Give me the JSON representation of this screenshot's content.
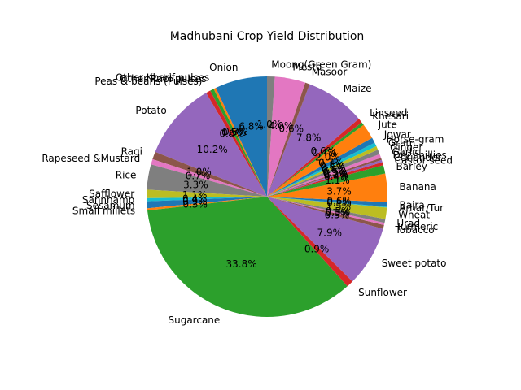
{
  "chart_data": {
    "type": "pie",
    "title": "Madhubani Crop Yield Distribution",
    "start_angle_deg": 90,
    "direction": "counterclockwise",
    "colors": [
      "#1f77b4",
      "#ff7f0e",
      "#2ca02c",
      "#d62728",
      "#9467bd",
      "#8c564b",
      "#e377c2",
      "#7f7f7f",
      "#bcbd22",
      "#17becf"
    ],
    "slices": [
      {
        "label": "Onion",
        "value": 6.8,
        "pct": "6.8%"
      },
      {
        "label": "Other Kharif pulses",
        "value": 0.3,
        "pct": "0.3%"
      },
      {
        "label": "Other Rabi pulses",
        "value": 0.5,
        "pct": "0.5%"
      },
      {
        "label": "Peas & beans (Pulses)",
        "value": 0.6,
        "pct": "0.6%"
      },
      {
        "label": "Potato",
        "value": 10.2,
        "pct": "10.2%"
      },
      {
        "label": "Ragi",
        "value": 1.0,
        "pct": "1.0%"
      },
      {
        "label": "Rapeseed &Mustard",
        "value": 0.7,
        "pct": "0.7%"
      },
      {
        "label": "Rice",
        "value": 3.3,
        "pct": "3.3%"
      },
      {
        "label": "Safflower",
        "value": 1.1,
        "pct": "1.1%"
      },
      {
        "label": "Sannhamp",
        "value": 0.4,
        "pct": "0.4%"
      },
      {
        "label": "Sesamum",
        "value": 0.9,
        "pct": "0.9%"
      },
      {
        "label": "Small millets",
        "value": 0.3,
        "pct": "0.3%"
      },
      {
        "label": "Sugarcane",
        "value": 33.8,
        "pct": "33.8%"
      },
      {
        "label": "Sunflower",
        "value": 0.9,
        "pct": "0.9%"
      },
      {
        "label": "Sweet potato",
        "value": 7.9,
        "pct": "7.9%"
      },
      {
        "label": "Tobacco",
        "value": 0.5,
        "pct": "0.5%"
      },
      {
        "label": "Turmeric",
        "value": 0.3,
        "pct": "0.3%"
      },
      {
        "label": "Urad",
        "value": 0.5,
        "pct": "0.5%"
      },
      {
        "label": "Wheat",
        "value": 1.5,
        "pct": "1.5%"
      },
      {
        "label": "Arhar/Tur",
        "value": 0.1,
        "pct": "0.1%"
      },
      {
        "label": "Bajra",
        "value": 0.6,
        "pct": "0.6%"
      },
      {
        "label": "Banana",
        "value": 3.7,
        "pct": "3.7%"
      },
      {
        "label": "Barley",
        "value": 1.1,
        "pct": "1.1%"
      },
      {
        "label": "Castor seed",
        "value": 0.4,
        "pct": "0.4%"
      },
      {
        "label": "Coriander",
        "value": 0.3,
        "pct": "0.3%"
      },
      {
        "label": "Dry chillies",
        "value": 0.3,
        "pct": "0.3%"
      },
      {
        "label": "Garlic",
        "value": 0.5,
        "pct": "0.5%"
      },
      {
        "label": "Ginger",
        "value": 0.6,
        "pct": "0.6%"
      },
      {
        "label": "Gram",
        "value": 0.5,
        "pct": "0.5%"
      },
      {
        "label": "Horse-gram",
        "value": 0.5,
        "pct": "0.5%"
      },
      {
        "label": "Jowar",
        "value": 0.7,
        "pct": "0.7%"
      },
      {
        "label": "Jute",
        "value": 2.0,
        "pct": "2.0%"
      },
      {
        "label": "Khesari",
        "value": 0.4,
        "pct": "0.4%"
      },
      {
        "label": "Linseed",
        "value": 0.6,
        "pct": "0.6%"
      },
      {
        "label": "Maize",
        "value": 7.8,
        "pct": "7.8%"
      },
      {
        "label": "Masoor",
        "value": 0.6,
        "pct": "0.6%"
      },
      {
        "label": "Mesta",
        "value": 4.0,
        "pct": "4.0%"
      },
      {
        "label": "Moong(Green Gram)",
        "value": 1.0,
        "pct": "1.0%"
      }
    ]
  }
}
